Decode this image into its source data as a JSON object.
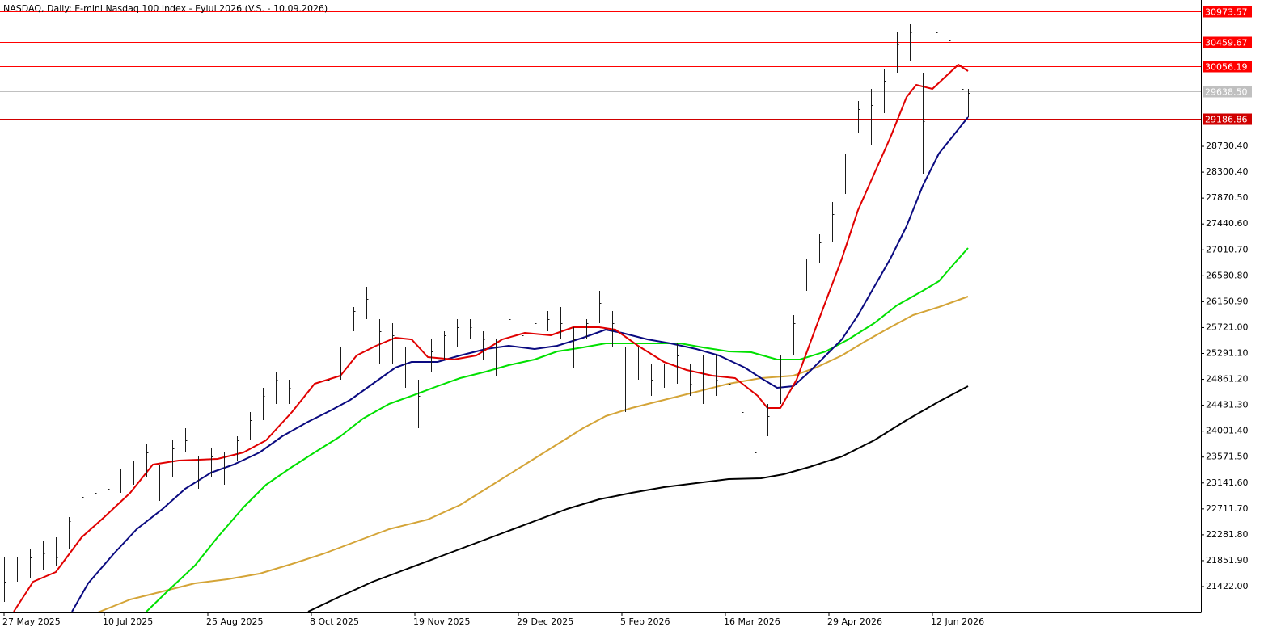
{
  "chart_data": {
    "type": "ohlc",
    "title": "NASDAQ, Daily:  E-mini Nasdaq 100 Index - Eylul 2026 (V.S. - 10.09.2026)",
    "xlim": [
      -1.25,
      370
    ],
    "ylim": [
      20993,
      31158
    ],
    "xticks": [
      {
        "value": 0,
        "label": "27 May 2025"
      },
      {
        "value": 31,
        "label": "10 Jul 2025"
      },
      {
        "value": 63,
        "label": "25 Aug 2025"
      },
      {
        "value": 95,
        "label": "8 Oct 2025"
      },
      {
        "value": 127,
        "label": "19 Nov 2025"
      },
      {
        "value": 159,
        "label": "29 Dec 2025"
      },
      {
        "value": 191,
        "label": "5 Feb 2026"
      },
      {
        "value": 223,
        "label": "16 Mar 2026"
      },
      {
        "value": 255,
        "label": "29 Apr 2026"
      },
      {
        "value": 287,
        "label": "12 Jun 2026"
      }
    ],
    "yticks": [
      {
        "value": 21422,
        "label": "21422.00"
      },
      {
        "value": 21851.9,
        "label": "21851.90"
      },
      {
        "value": 22281.8,
        "label": "22281.80"
      },
      {
        "value": 22711.7,
        "label": "22711.70"
      },
      {
        "value": 23141.6,
        "label": "23141.60"
      },
      {
        "value": 23571.5,
        "label": "23571.50"
      },
      {
        "value": 24001.4,
        "label": "24001.40"
      },
      {
        "value": 24431.3,
        "label": "24431.30"
      },
      {
        "value": 24861.2,
        "label": "24861.20"
      },
      {
        "value": 25291.1,
        "label": "25291.10"
      },
      {
        "value": 25721,
        "label": "25721.00"
      },
      {
        "value": 26150.9,
        "label": "26150.90"
      },
      {
        "value": 26580.8,
        "label": "26580.80"
      },
      {
        "value": 27010.7,
        "label": "27010.70"
      },
      {
        "value": 27440.6,
        "label": "27440.60"
      },
      {
        "value": 27870.5,
        "label": "27870.50"
      },
      {
        "value": 28300.4,
        "label": "28300.40"
      },
      {
        "value": 28730.4,
        "label": "28730.40"
      }
    ],
    "bar_color": "#1a1a1a",
    "bars": {
      "x": [
        0,
        4,
        8,
        12,
        16,
        20,
        24,
        28,
        32,
        36,
        40,
        44,
        48,
        52,
        56,
        60,
        64,
        68,
        72,
        76,
        80,
        84,
        88,
        92,
        96,
        100,
        104,
        108,
        112,
        116,
        120,
        124,
        128,
        132,
        136,
        140,
        144,
        148,
        152,
        156,
        160,
        164,
        168,
        172,
        176,
        180,
        184,
        188,
        192,
        196,
        200,
        204,
        208,
        212,
        216,
        220,
        224,
        228,
        232,
        236,
        240,
        244,
        248,
        252,
        256,
        260,
        264,
        268,
        272,
        276,
        280,
        284,
        288,
        292,
        296,
        298
      ],
      "high": [
        21905,
        21905,
        22039,
        22173,
        22240,
        22575,
        23045,
        23112,
        23112,
        23380,
        23514,
        23782,
        23447,
        23849,
        24050,
        23581,
        23715,
        23648,
        23916,
        24319,
        24721,
        24989,
        24855,
        25190,
        25391,
        25123,
        25391,
        26062,
        26397,
        25861,
        25794,
        25391,
        24855,
        25525,
        25660,
        25861,
        25861,
        25660,
        25525,
        25928,
        25928,
        25995,
        25995,
        26062,
        25727,
        25861,
        26330,
        25995,
        25391,
        25391,
        25123,
        25123,
        25458,
        25123,
        25257,
        25257,
        25123,
        24855,
        24184,
        24453,
        25257,
        25928,
        26866,
        27269,
        27805,
        28610,
        29481,
        29683,
        30018,
        30621,
        30755,
        29951,
        30957,
        30957,
        30152,
        29683
      ],
      "low": [
        21167,
        21502,
        21570,
        21704,
        21771,
        22039,
        22508,
        22776,
        22843,
        22978,
        23112,
        23246,
        22843,
        23246,
        23648,
        23045,
        23246,
        23112,
        23514,
        23849,
        24184,
        24453,
        24453,
        24721,
        24453,
        24453,
        24855,
        25660,
        25861,
        25123,
        25123,
        24721,
        24050,
        24989,
        25190,
        25391,
        25525,
        25190,
        24922,
        25525,
        25391,
        25525,
        25660,
        25525,
        25056,
        25525,
        25794,
        25391,
        24319,
        24855,
        24587,
        24721,
        24788,
        24587,
        24453,
        24587,
        24453,
        23782,
        23179,
        23916,
        24453,
        25257,
        26330,
        26799,
        27135,
        27939,
        28945,
        28744,
        29280,
        29951,
        30152,
        28275,
        30085,
        30152,
        29146,
        29213
      ],
      "close": [
        21502,
        21771,
        21905,
        21972,
        21905,
        22508,
        22911,
        22978,
        23045,
        23246,
        23447,
        23648,
        23313,
        23715,
        23849,
        23447,
        23581,
        23447,
        23849,
        24184,
        24587,
        24855,
        24721,
        25123,
        25123,
        24855,
        25190,
        25995,
        26196,
        25660,
        25593,
        25123,
        24587,
        25324,
        25593,
        25727,
        25727,
        25525,
        25391,
        25861,
        25593,
        25794,
        25861,
        25794,
        25525,
        25794,
        26129,
        25794,
        25056,
        25190,
        24855,
        24989,
        25257,
        24788,
        24989,
        24855,
        24788,
        24319,
        23648,
        24252,
        25056,
        25794,
        26732,
        27135,
        27604,
        28476,
        29347,
        29414,
        29817,
        30420,
        30621,
        29146,
        30621,
        30487,
        29683,
        29616
      ]
    },
    "series": [
      {
        "color": "#000000",
        "x": [
          94,
          104,
          114,
          124,
          134,
          144,
          154,
          164,
          174,
          184,
          194,
          204,
          214,
          224,
          234,
          241,
          249,
          259,
          269,
          279,
          289,
          298
        ],
        "values": [
          21006,
          21261,
          21502,
          21704,
          21905,
          22106,
          22307,
          22508,
          22709,
          22870,
          22978,
          23071,
          23138,
          23206,
          23219,
          23286,
          23407,
          23581,
          23849,
          24184,
          24493,
          24748
        ]
      },
      {
        "color": "#d4a437",
        "x": [
          29,
          39,
          49,
          59,
          69,
          79,
          89,
          99,
          109,
          119,
          131,
          141,
          151,
          161,
          171,
          179,
          186,
          194,
          204,
          214,
          224,
          234,
          244,
          251,
          259,
          266,
          274,
          281,
          289,
          298
        ],
        "values": [
          20993,
          21207,
          21342,
          21476,
          21543,
          21637,
          21797,
          21972,
          22173,
          22374,
          22535,
          22776,
          23112,
          23447,
          23782,
          24050,
          24252,
          24386,
          24520,
          24654,
          24788,
          24882,
          24922,
          25056,
          25257,
          25485,
          25727,
          25928,
          26062,
          26236
        ]
      },
      {
        "color": "#00e000",
        "x": [
          44,
          51,
          59,
          66,
          74,
          81,
          89,
          96,
          104,
          111,
          119,
          126,
          134,
          141,
          149,
          156,
          164,
          171,
          179,
          186,
          209,
          216,
          224,
          231,
          239,
          246,
          254,
          261,
          269,
          276,
          284,
          289,
          294,
          298
        ],
        "values": [
          21006,
          21368,
          21771,
          22240,
          22736,
          23112,
          23407,
          23648,
          23916,
          24211,
          24453,
          24587,
          24748,
          24882,
          24989,
          25096,
          25190,
          25324,
          25391,
          25458,
          25458,
          25391,
          25324,
          25311,
          25190,
          25190,
          25324,
          25525,
          25794,
          26089,
          26330,
          26491,
          26799,
          27041
        ]
      },
      {
        "color": "#0a0a80",
        "x": [
          21,
          26,
          34,
          41,
          49,
          56,
          64,
          71,
          79,
          86,
          94,
          101,
          107,
          114,
          121,
          126,
          134,
          141,
          149,
          156,
          164,
          171,
          179,
          186,
          191,
          199,
          206,
          214,
          221,
          229,
          234,
          239,
          244,
          249,
          254,
          259,
          264,
          269,
          274,
          279,
          284,
          289,
          294,
          298
        ],
        "values": [
          21006,
          21476,
          21972,
          22374,
          22709,
          23045,
          23313,
          23447,
          23648,
          23916,
          24158,
          24345,
          24520,
          24788,
          25056,
          25150,
          25150,
          25257,
          25365,
          25418,
          25365,
          25418,
          25552,
          25686,
          25633,
          25525,
          25458,
          25365,
          25257,
          25056,
          24882,
          24721,
          24748,
          24989,
          25257,
          25525,
          25928,
          26397,
          26866,
          27403,
          28073,
          28610,
          28945,
          29213
        ]
      },
      {
        "color": "#e00000",
        "x": [
          3,
          9,
          16,
          24,
          31,
          39,
          46,
          54,
          66,
          74,
          81,
          89,
          96,
          104,
          109,
          115,
          121,
          126,
          131,
          139,
          146,
          154,
          161,
          169,
          176,
          184,
          189,
          196,
          204,
          211,
          219,
          226,
          233,
          236,
          240,
          245,
          251,
          259,
          264,
          269,
          274,
          279,
          282,
          287,
          291,
          295,
          298
        ],
        "values": [
          21006,
          21502,
          21663,
          22240,
          22575,
          22978,
          23447,
          23514,
          23541,
          23648,
          23849,
          24319,
          24788,
          24922,
          25257,
          25418,
          25552,
          25525,
          25230,
          25190,
          25257,
          25525,
          25633,
          25593,
          25727,
          25727,
          25686,
          25418,
          25150,
          25016,
          24922,
          24882,
          24587,
          24386,
          24386,
          24855,
          25727,
          26866,
          27671,
          28275,
          28878,
          29548,
          29750,
          29683,
          29884,
          30085,
          29978
        ]
      }
    ],
    "levels": [
      {
        "value": 30973.57,
        "color": "#ff0000"
      },
      {
        "value": 30459.67,
        "color": "#ff0000"
      },
      {
        "value": 30056.19,
        "color": "#ff0000"
      },
      {
        "value": 29638.5,
        "label": "29638.50",
        "color": "#c0c0c0"
      },
      {
        "value": 29186.86,
        "color": "#d00000"
      }
    ]
  }
}
